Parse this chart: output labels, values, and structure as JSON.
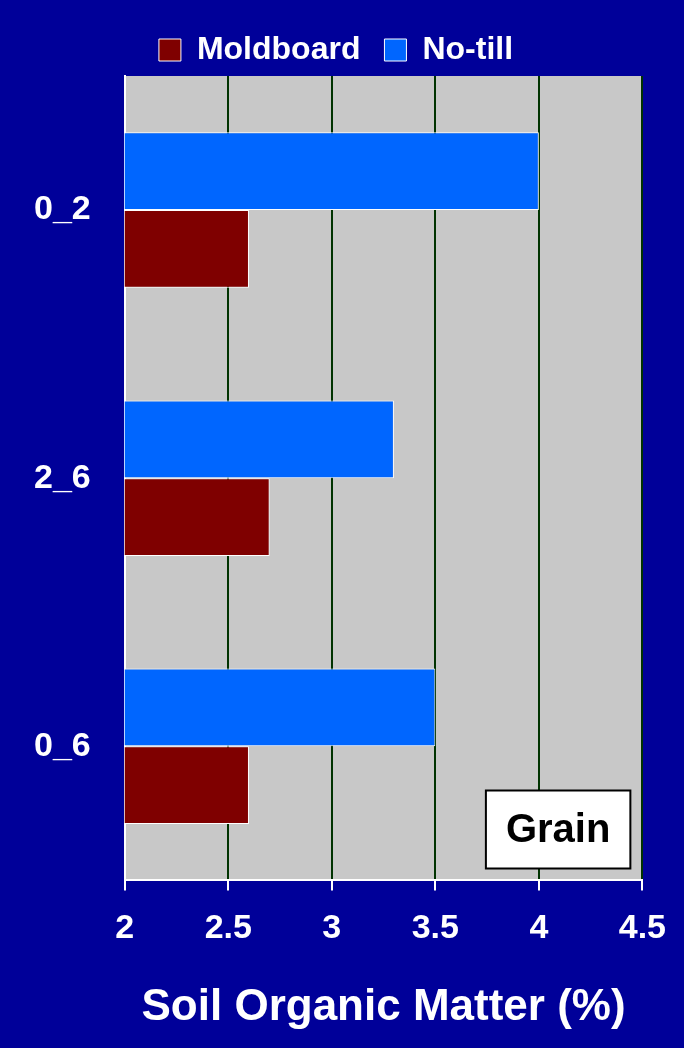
{
  "chart_data": {
    "type": "bar",
    "orientation": "horizontal",
    "xlabel": "Soil Organic Matter (%)",
    "categories": [
      "0_2",
      "2_6",
      "0_6"
    ],
    "series": [
      {
        "name": "Moldboard",
        "color": "#7f0000",
        "values": [
          2.6,
          2.7,
          2.6
        ]
      },
      {
        "name": "No-till",
        "color": "#0066ff",
        "values": [
          4.0,
          3.3,
          3.5
        ]
      }
    ],
    "xlim": [
      2,
      4.5
    ],
    "xticks": [
      2,
      2.5,
      3,
      3.5,
      4,
      4.5
    ],
    "grid": "x",
    "legend": "top",
    "annotations": [
      "Grain"
    ]
  }
}
